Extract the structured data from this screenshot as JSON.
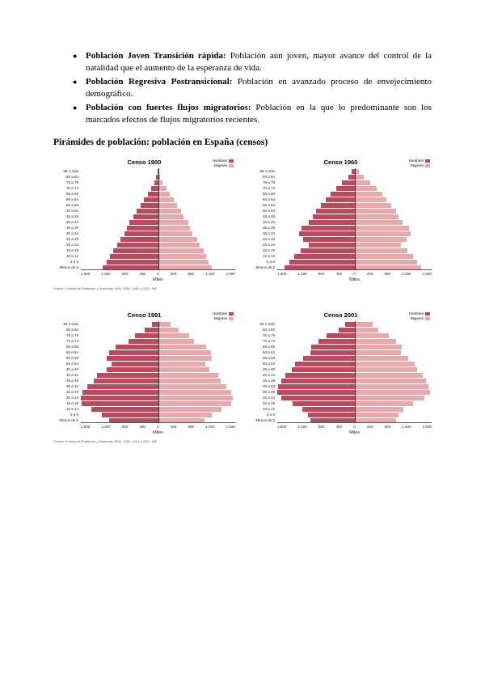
{
  "bullets": [
    {
      "bold": "Población Joven Transición rápida:",
      "text": " Población aún joven, mayor avance del control de la natalidad que el aumento de la esperanza de vida."
    },
    {
      "bold": "Población Regresiva Postransicional:",
      "text": " Población en avanzado proceso de envejecimiento demográfico."
    },
    {
      "bold": "Población con fuertes flujos migratorios:",
      "text": " Población en la que lo predominante son los marcados efectos de flujos migratorios recientes."
    }
  ],
  "heading": "Pirámides de población: población en España (censos)",
  "legend": {
    "hombres": "Hombres",
    "mujeres": "Mujeres"
  },
  "colors": {
    "hombres": "#b94a5e",
    "mujeres": "#e8a9ac"
  },
  "axis": {
    "xlabel": "Miles",
    "ticks": [
      "1.600",
      "1.200",
      "800",
      "400",
      "0",
      "400",
      "800",
      "1.200",
      "1.600"
    ],
    "max": 1600
  },
  "source_note": "Fuente: Censos de Población y Viviendas 1900, 1960, 1991 y 2001. INE",
  "chart_data": [
    {
      "type": "bar",
      "title": "Censo 1900",
      "orientation": "population-pyramid",
      "xlabel": "Miles",
      "xlim": [
        -1600,
        1600
      ],
      "legend_position": "top-right",
      "categories": [
        "Menos de 5",
        "5 a 9",
        "10 a 14",
        "15 a 19",
        "20 a 24",
        "25 a 29",
        "30 a 34",
        "35 a 39",
        "40 a 44",
        "45 a 49",
        "50 a 54",
        "55 a 59",
        "60 a 64",
        "65 a 69",
        "70 a 74",
        "75 a 79",
        "80 a 84",
        "85 ó más"
      ],
      "series": [
        {
          "name": "Hombres",
          "values": [
            1150,
            1060,
            1000,
            930,
            840,
            780,
            700,
            650,
            600,
            510,
            450,
            360,
            300,
            210,
            140,
            75,
            35,
            12
          ]
        },
        {
          "name": "Mujeres",
          "values": [
            1120,
            1040,
            990,
            950,
            870,
            810,
            720,
            670,
            620,
            530,
            470,
            390,
            320,
            240,
            170,
            100,
            50,
            20
          ]
        }
      ]
    },
    {
      "type": "bar",
      "title": "Censo 1960",
      "orientation": "population-pyramid",
      "xlabel": "Miles",
      "xlim": [
        -1600,
        1600
      ],
      "legend_position": "top-right",
      "categories": [
        "Menos de 5",
        "5 a 9",
        "10 a 14",
        "15 a 19",
        "20 a 24",
        "25 a 29",
        "30 a 34",
        "35 a 39",
        "40 a 44",
        "45 a 49",
        "50 a 54",
        "55 a 59",
        "60 a 64",
        "65 a 69",
        "70 a 74",
        "75 a 79",
        "80 a 84",
        "85 ó más"
      ],
      "series": [
        {
          "name": "Hombres",
          "values": [
            1450,
            1350,
            1250,
            1120,
            950,
            1060,
            1150,
            1100,
            950,
            860,
            800,
            700,
            590,
            490,
            380,
            260,
            130,
            55
          ]
        },
        {
          "name": "Mujeres",
          "values": [
            1380,
            1300,
            1210,
            1090,
            960,
            1080,
            1170,
            1130,
            1000,
            920,
            860,
            770,
            670,
            570,
            460,
            330,
            190,
            90
          ]
        }
      ]
    },
    {
      "type": "bar",
      "title": "Censo 1991",
      "orientation": "population-pyramid",
      "xlabel": "Miles",
      "xlim": [
        -1600,
        1600
      ],
      "legend_position": "top-right",
      "categories": [
        "Menos de 5",
        "5 a 9",
        "10 a 14",
        "15 a 19",
        "20 a 24",
        "25 a 29",
        "30 a 34",
        "35 a 39",
        "40 a 44",
        "45 a 49",
        "50 a 54",
        "55 a 59",
        "60 a 64",
        "65 a 69",
        "70 a 74",
        "75 a 79",
        "80 a 84",
        "85 ó más"
      ],
      "series": [
        {
          "name": "Hombres",
          "values": [
            1020,
            1170,
            1380,
            1580,
            1600,
            1560,
            1460,
            1330,
            1270,
            1060,
            960,
            1060,
            1010,
            880,
            610,
            480,
            280,
            130
          ]
        },
        {
          "name": "Mujeres",
          "values": [
            960,
            1110,
            1310,
            1510,
            1550,
            1510,
            1420,
            1300,
            1250,
            1060,
            980,
            1110,
            1090,
            990,
            740,
            640,
            430,
            260
          ]
        }
      ]
    },
    {
      "type": "bar",
      "title": "Censo 2001",
      "orientation": "population-pyramid",
      "xlabel": "Miles",
      "xlim": [
        -1600,
        1600
      ],
      "legend_position": "top-right",
      "categories": [
        "Menos de 5",
        "5 a 9",
        "10 a 14",
        "15 a 19",
        "20 a 24",
        "25 a 29",
        "30 a 34",
        "35 a 39",
        "40 a 44",
        "45 a 49",
        "50 a 54",
        "55 a 59",
        "60 a 64",
        "65 a 69",
        "70 a 74",
        "75 a 79",
        "80 a 84",
        "85 ó más"
      ],
      "series": [
        {
          "name": "Hombres",
          "values": [
            920,
            970,
            1080,
            1280,
            1520,
            1600,
            1580,
            1510,
            1430,
            1300,
            1230,
            1070,
            910,
            890,
            750,
            570,
            330,
            190
          ]
        },
        {
          "name": "Mujeres",
          "values": [
            870,
            920,
            1020,
            1210,
            1450,
            1560,
            1540,
            1480,
            1410,
            1300,
            1250,
            1110,
            970,
            980,
            860,
            720,
            490,
            370
          ]
        }
      ]
    }
  ]
}
